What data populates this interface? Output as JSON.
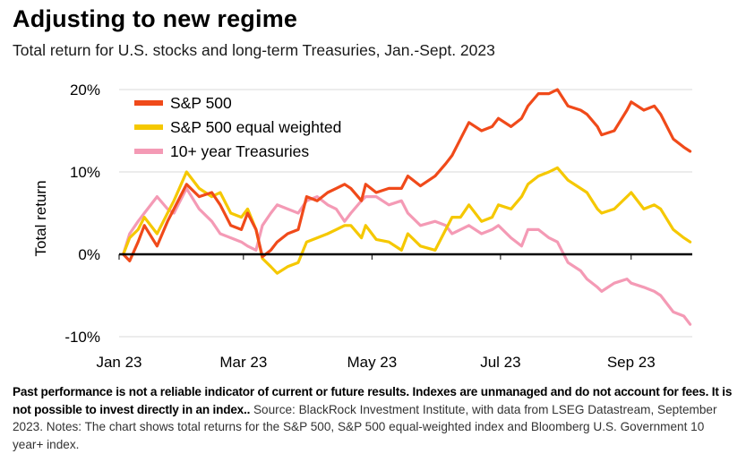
{
  "header": {
    "title": "Adjusting to new regime",
    "subtitle": "Total return for U.S. stocks and long-term Treasuries, Jan.-Sept. 2023"
  },
  "footer": {
    "disclaimer_bold": "Past performance is not a reliable indicator of current or future results. Indexes are unmanaged and do not account for fees. It is not possible to invest directly in an index..",
    "source_text": " Source: BlackRock Investment Institute, with data from LSEG Datastream, September 2023. Notes: The chart shows total returns for the S&P 500, S&P 500 equal-weighted index and Bloomberg U.S. Government 10 year+ index."
  },
  "chart_data": {
    "type": "line",
    "title": "Adjusting to new regime",
    "ylabel": "Total return",
    "ylim": [
      -10,
      20
    ],
    "yticks": [
      -10,
      0,
      10,
      20
    ],
    "ytick_labels": [
      "-10%",
      "0%",
      "10%",
      "20%"
    ],
    "xlim": [
      "2023-01-01",
      "2023-09-30"
    ],
    "xticks": [
      "2023-01-01",
      "2023-03-01",
      "2023-05-01",
      "2023-07-01",
      "2023-09-01"
    ],
    "xtick_labels": [
      "Jan 23",
      "Mar 23",
      "May 23",
      "Jul 23",
      "Sep 23"
    ],
    "grid": "horizontal",
    "legend_position": "top-left",
    "series": [
      {
        "name": "S&P 500",
        "color": "#f04a1a",
        "points": [
          [
            "2023-01-03",
            0
          ],
          [
            "2023-01-06",
            -0.8
          ],
          [
            "2023-01-10",
            1.5
          ],
          [
            "2023-01-13",
            3.5
          ],
          [
            "2023-01-19",
            1.0
          ],
          [
            "2023-01-24",
            4.0
          ],
          [
            "2023-01-27",
            5.5
          ],
          [
            "2023-02-02",
            8.5
          ],
          [
            "2023-02-08",
            7.0
          ],
          [
            "2023-02-14",
            7.5
          ],
          [
            "2023-02-18",
            6.0
          ],
          [
            "2023-02-23",
            3.5
          ],
          [
            "2023-02-28",
            3.0
          ],
          [
            "2023-03-03",
            5.0
          ],
          [
            "2023-03-07",
            3.0
          ],
          [
            "2023-03-10",
            -0.3
          ],
          [
            "2023-03-14",
            0.5
          ],
          [
            "2023-03-17",
            1.5
          ],
          [
            "2023-03-22",
            2.5
          ],
          [
            "2023-03-27",
            3.0
          ],
          [
            "2023-03-31",
            7.0
          ],
          [
            "2023-04-05",
            6.5
          ],
          [
            "2023-04-10",
            7.5
          ],
          [
            "2023-04-14",
            8.0
          ],
          [
            "2023-04-18",
            8.5
          ],
          [
            "2023-04-21",
            8.0
          ],
          [
            "2023-04-26",
            6.5
          ],
          [
            "2023-04-28",
            8.5
          ],
          [
            "2023-05-03",
            7.5
          ],
          [
            "2023-05-09",
            8.0
          ],
          [
            "2023-05-15",
            8.0
          ],
          [
            "2023-05-18",
            9.5
          ],
          [
            "2023-05-24",
            8.3
          ],
          [
            "2023-05-31",
            9.5
          ],
          [
            "2023-06-05",
            11.0
          ],
          [
            "2023-06-08",
            12.0
          ],
          [
            "2023-06-12",
            14.0
          ],
          [
            "2023-06-16",
            16.0
          ],
          [
            "2023-06-22",
            15.0
          ],
          [
            "2023-06-27",
            15.5
          ],
          [
            "2023-06-30",
            16.5
          ],
          [
            "2023-07-06",
            15.5
          ],
          [
            "2023-07-11",
            16.5
          ],
          [
            "2023-07-14",
            18.0
          ],
          [
            "2023-07-19",
            19.5
          ],
          [
            "2023-07-24",
            19.5
          ],
          [
            "2023-07-28",
            20.0
          ],
          [
            "2023-08-02",
            18.0
          ],
          [
            "2023-08-08",
            17.5
          ],
          [
            "2023-08-11",
            17.0
          ],
          [
            "2023-08-16",
            15.5
          ],
          [
            "2023-08-18",
            14.5
          ],
          [
            "2023-08-24",
            15.0
          ],
          [
            "2023-08-30",
            17.5
          ],
          [
            "2023-09-01",
            18.5
          ],
          [
            "2023-09-07",
            17.5
          ],
          [
            "2023-09-12",
            18.0
          ],
          [
            "2023-09-15",
            17.0
          ],
          [
            "2023-09-21",
            14.0
          ],
          [
            "2023-09-26",
            13.0
          ],
          [
            "2023-09-29",
            12.5
          ]
        ]
      },
      {
        "name": "S&P 500 equal weighted",
        "color": "#f5c800",
        "points": [
          [
            "2023-01-03",
            0
          ],
          [
            "2023-01-06",
            2.0
          ],
          [
            "2023-01-10",
            3.0
          ],
          [
            "2023-01-13",
            4.5
          ],
          [
            "2023-01-19",
            2.5
          ],
          [
            "2023-01-24",
            5.0
          ],
          [
            "2023-01-27",
            6.5
          ],
          [
            "2023-02-02",
            10.0
          ],
          [
            "2023-02-08",
            8.0
          ],
          [
            "2023-02-14",
            7.0
          ],
          [
            "2023-02-18",
            7.5
          ],
          [
            "2023-02-23",
            5.0
          ],
          [
            "2023-02-28",
            4.5
          ],
          [
            "2023-03-03",
            5.5
          ],
          [
            "2023-03-07",
            3.0
          ],
          [
            "2023-03-10",
            -0.5
          ],
          [
            "2023-03-14",
            -1.5
          ],
          [
            "2023-03-17",
            -2.3
          ],
          [
            "2023-03-22",
            -1.5
          ],
          [
            "2023-03-27",
            -1.0
          ],
          [
            "2023-03-31",
            1.5
          ],
          [
            "2023-04-05",
            2.0
          ],
          [
            "2023-04-10",
            2.5
          ],
          [
            "2023-04-14",
            3.0
          ],
          [
            "2023-04-18",
            3.5
          ],
          [
            "2023-04-21",
            3.5
          ],
          [
            "2023-04-26",
            2.0
          ],
          [
            "2023-04-28",
            3.5
          ],
          [
            "2023-05-03",
            1.8
          ],
          [
            "2023-05-09",
            1.5
          ],
          [
            "2023-05-15",
            0.5
          ],
          [
            "2023-05-18",
            2.5
          ],
          [
            "2023-05-24",
            1.0
          ],
          [
            "2023-05-31",
            0.5
          ],
          [
            "2023-06-05",
            3.0
          ],
          [
            "2023-06-08",
            4.5
          ],
          [
            "2023-06-12",
            4.5
          ],
          [
            "2023-06-16",
            6.0
          ],
          [
            "2023-06-22",
            4.0
          ],
          [
            "2023-06-27",
            4.5
          ],
          [
            "2023-06-30",
            6.0
          ],
          [
            "2023-07-06",
            5.5
          ],
          [
            "2023-07-11",
            7.0
          ],
          [
            "2023-07-14",
            8.5
          ],
          [
            "2023-07-19",
            9.5
          ],
          [
            "2023-07-24",
            10.0
          ],
          [
            "2023-07-28",
            10.5
          ],
          [
            "2023-08-02",
            9.0
          ],
          [
            "2023-08-08",
            8.0
          ],
          [
            "2023-08-11",
            7.5
          ],
          [
            "2023-08-16",
            5.5
          ],
          [
            "2023-08-18",
            5.0
          ],
          [
            "2023-08-24",
            5.5
          ],
          [
            "2023-08-30",
            7.0
          ],
          [
            "2023-09-01",
            7.5
          ],
          [
            "2023-09-07",
            5.5
          ],
          [
            "2023-09-12",
            6.0
          ],
          [
            "2023-09-15",
            5.5
          ],
          [
            "2023-09-21",
            3.0
          ],
          [
            "2023-09-26",
            2.0
          ],
          [
            "2023-09-29",
            1.5
          ]
        ]
      },
      {
        "name": "10+ year Treasuries",
        "color": "#f49ab5",
        "points": [
          [
            "2023-01-03",
            0
          ],
          [
            "2023-01-06",
            2.5
          ],
          [
            "2023-01-10",
            4.0
          ],
          [
            "2023-01-13",
            5.0
          ],
          [
            "2023-01-19",
            7.0
          ],
          [
            "2023-01-24",
            5.5
          ],
          [
            "2023-01-27",
            5.0
          ],
          [
            "2023-02-02",
            8.0
          ],
          [
            "2023-02-08",
            5.5
          ],
          [
            "2023-02-14",
            4.0
          ],
          [
            "2023-02-18",
            2.5
          ],
          [
            "2023-02-23",
            2.0
          ],
          [
            "2023-02-28",
            1.5
          ],
          [
            "2023-03-03",
            1.0
          ],
          [
            "2023-03-07",
            0.5
          ],
          [
            "2023-03-10",
            3.5
          ],
          [
            "2023-03-14",
            5.0
          ],
          [
            "2023-03-17",
            6.0
          ],
          [
            "2023-03-22",
            5.5
          ],
          [
            "2023-03-27",
            5.0
          ],
          [
            "2023-03-31",
            6.5
          ],
          [
            "2023-04-05",
            7.0
          ],
          [
            "2023-04-10",
            6.0
          ],
          [
            "2023-04-14",
            5.5
          ],
          [
            "2023-04-18",
            4.0
          ],
          [
            "2023-04-21",
            5.0
          ],
          [
            "2023-04-26",
            6.5
          ],
          [
            "2023-04-28",
            7.0
          ],
          [
            "2023-05-03",
            7.0
          ],
          [
            "2023-05-09",
            6.0
          ],
          [
            "2023-05-15",
            6.5
          ],
          [
            "2023-05-18",
            5.0
          ],
          [
            "2023-05-24",
            3.5
          ],
          [
            "2023-05-31",
            4.0
          ],
          [
            "2023-06-05",
            3.5
          ],
          [
            "2023-06-08",
            2.5
          ],
          [
            "2023-06-12",
            3.0
          ],
          [
            "2023-06-16",
            3.5
          ],
          [
            "2023-06-22",
            2.5
          ],
          [
            "2023-06-27",
            3.0
          ],
          [
            "2023-06-30",
            3.5
          ],
          [
            "2023-07-06",
            2.0
          ],
          [
            "2023-07-11",
            1.0
          ],
          [
            "2023-07-14",
            3.0
          ],
          [
            "2023-07-19",
            3.0
          ],
          [
            "2023-07-24",
            2.0
          ],
          [
            "2023-07-28",
            1.5
          ],
          [
            "2023-08-02",
            -1.0
          ],
          [
            "2023-08-08",
            -2.0
          ],
          [
            "2023-08-11",
            -3.0
          ],
          [
            "2023-08-16",
            -4.0
          ],
          [
            "2023-08-18",
            -4.5
          ],
          [
            "2023-08-24",
            -3.5
          ],
          [
            "2023-08-30",
            -3.0
          ],
          [
            "2023-09-01",
            -3.5
          ],
          [
            "2023-09-07",
            -4.0
          ],
          [
            "2023-09-12",
            -4.5
          ],
          [
            "2023-09-15",
            -5.0
          ],
          [
            "2023-09-21",
            -7.0
          ],
          [
            "2023-09-26",
            -7.5
          ],
          [
            "2023-09-29",
            -8.5
          ]
        ]
      }
    ]
  }
}
